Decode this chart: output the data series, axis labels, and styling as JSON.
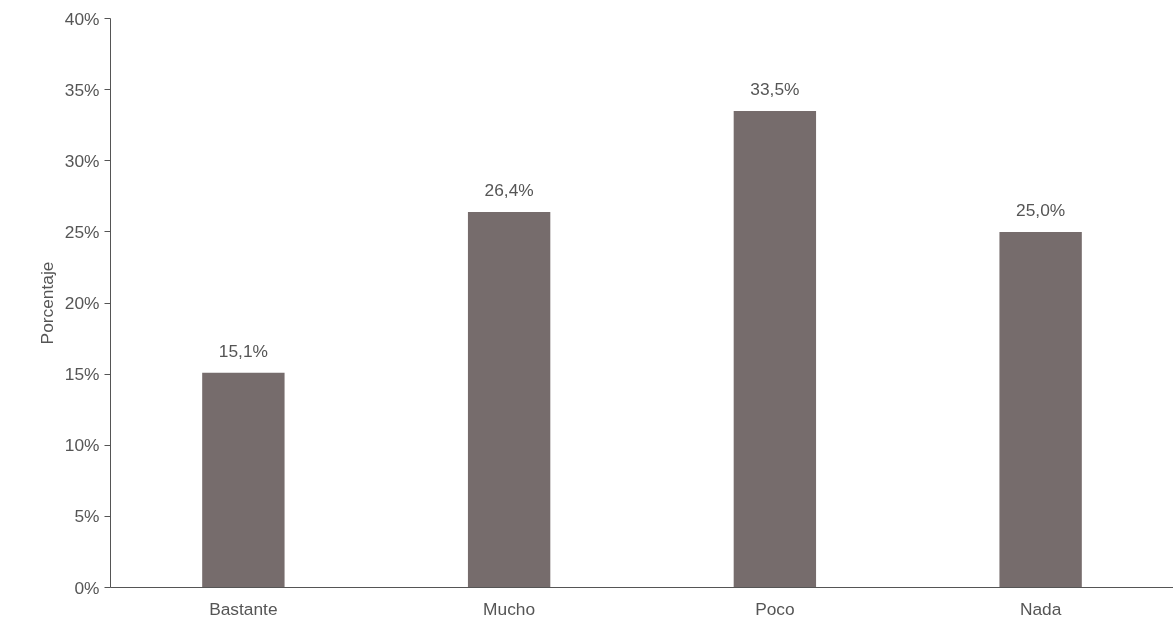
{
  "chart_data": {
    "type": "bar",
    "ylabel": "Porcentaje",
    "categories": [
      "Bastante",
      "Mucho",
      "Poco",
      "Nada"
    ],
    "values": [
      15.1,
      26.4,
      33.5,
      25.0
    ],
    "value_labels": [
      "15,1%",
      "26,4%",
      "33,5%",
      "25,0%"
    ],
    "color": "#766c6c",
    "ylim": [
      0,
      40
    ],
    "yticks": [
      {
        "value": 0,
        "label": "0%"
      },
      {
        "value": 5,
        "label": "5%"
      },
      {
        "value": 10,
        "label": "10%"
      },
      {
        "value": 15,
        "label": "15%"
      },
      {
        "value": 20,
        "label": "20%"
      },
      {
        "value": 25,
        "label": "25%"
      },
      {
        "value": 30,
        "label": "30%"
      },
      {
        "value": 35,
        "label": "35%"
      },
      {
        "value": 40,
        "label": "40%"
      }
    ],
    "grid": false
  }
}
